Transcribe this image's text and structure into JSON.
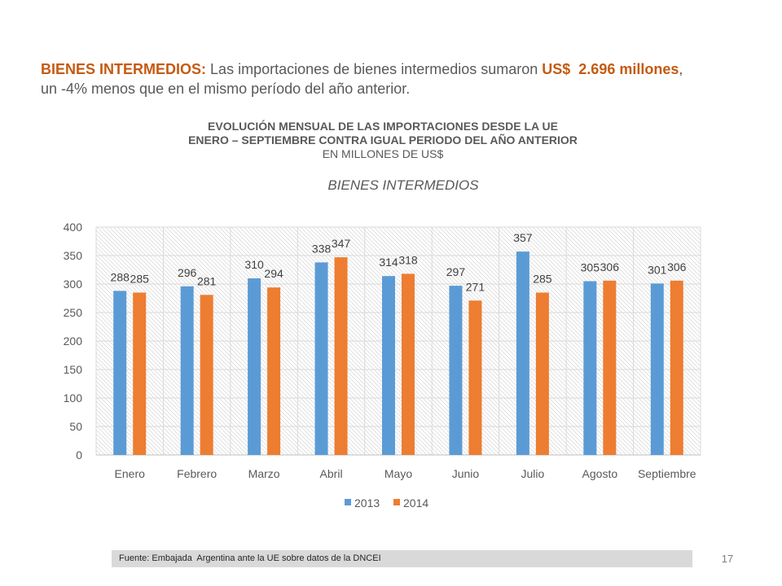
{
  "slide": {
    "heading": {
      "label": "BIENES INTERMEDIOS:",
      "text": "Las importaciones de bienes intermedios sumaron",
      "amount": "US$  2.696 millones",
      "after_amount": ",",
      "line2": "un -4% menos que en el mismo período del año anterior."
    },
    "chart_heading": {
      "line1": "EVOLUCIÓN MENSUAL DE LAS IMPORTACIONES DESDE LA UE",
      "line2": "ENERO – SEPTIEMBRE CONTRA IGUAL PERIODO DEL AÑO ANTERIOR",
      "line3": "EN MILLONES DE US$"
    },
    "source": "Fuente: Embajada  Argentina ante la UE sobre datos de la DNCEI",
    "page_number": "17"
  },
  "colors": {
    "highlight": "#C55A11",
    "text": "#595959",
    "source_bar": "#D9D9D9"
  },
  "chart_data": {
    "type": "bar",
    "title": "BIENES INTERMEDIOS",
    "xlabel": "",
    "ylabel": "",
    "categories": [
      "Enero",
      "Febrero",
      "Marzo",
      "Abril",
      "Mayo",
      "Junio",
      "Julio",
      "Agosto",
      "Septiembre"
    ],
    "series": [
      {
        "name": "2013",
        "color": "#5B9BD5",
        "values": [
          288,
          296,
          310,
          338,
          314,
          297,
          357,
          305,
          301
        ]
      },
      {
        "name": "2014",
        "color": "#ED7D31",
        "values": [
          285,
          281,
          294,
          347,
          318,
          271,
          285,
          306,
          306
        ]
      }
    ],
    "ylim": [
      0,
      400
    ],
    "yticks": [
      0,
      50,
      100,
      150,
      200,
      250,
      300,
      350,
      400
    ],
    "grid": true,
    "data_labels": true,
    "legend": "bottom-center"
  }
}
